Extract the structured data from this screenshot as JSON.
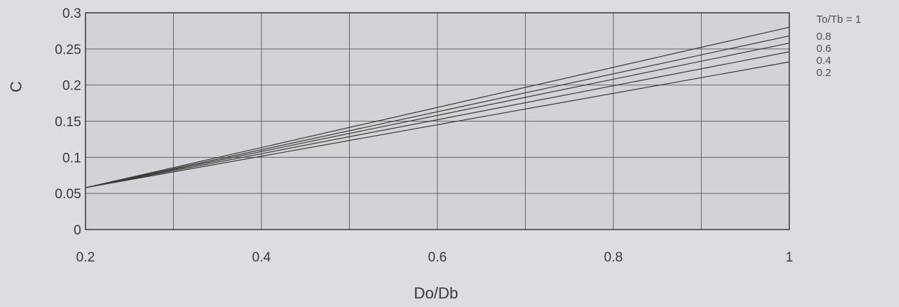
{
  "chart_data": {
    "type": "line",
    "title": "",
    "xlabel": "Do/Db",
    "ylabel": "C",
    "xlim": [
      0.2,
      1.0
    ],
    "ylim": [
      0,
      0.3
    ],
    "x_ticks": [
      0.2,
      0.3,
      0.4,
      0.5,
      0.6,
      0.7,
      0.8,
      0.9,
      1.0
    ],
    "x_tick_labels": [
      "0.2",
      "",
      "0.4",
      "",
      "0.6",
      "",
      "0.8",
      "",
      "1"
    ],
    "y_ticks": [
      0,
      0.05,
      0.1,
      0.15,
      0.2,
      0.25,
      0.3
    ],
    "y_tick_labels": [
      "0",
      "0.05",
      "0.1",
      "0.15",
      "0.2",
      "0.25",
      "0.3"
    ],
    "grid": true,
    "legend_placement": "right",
    "legend_header": "To/Tb = 1",
    "series": [
      {
        "name": "1",
        "x": [
          0.2,
          1.0
        ],
        "y": [
          0.058,
          0.28
        ]
      },
      {
        "name": "0.8",
        "x": [
          0.2,
          1.0
        ],
        "y": [
          0.058,
          0.268
        ]
      },
      {
        "name": "0.6",
        "x": [
          0.2,
          1.0
        ],
        "y": [
          0.058,
          0.258
        ]
      },
      {
        "name": "0.4",
        "x": [
          0.2,
          1.0
        ],
        "y": [
          0.058,
          0.246
        ]
      },
      {
        "name": "0.2",
        "x": [
          0.2,
          1.0
        ],
        "y": [
          0.058,
          0.232
        ]
      }
    ],
    "legend_labels": [
      "0.8",
      "0.6",
      "0.4",
      "0.2"
    ],
    "colors": {
      "background": "#dcdde1",
      "plot_background": "#d2d3d6",
      "grid": "#3a3a3a",
      "lines": "#3a3a3a",
      "text": "#3a3a3a"
    }
  }
}
